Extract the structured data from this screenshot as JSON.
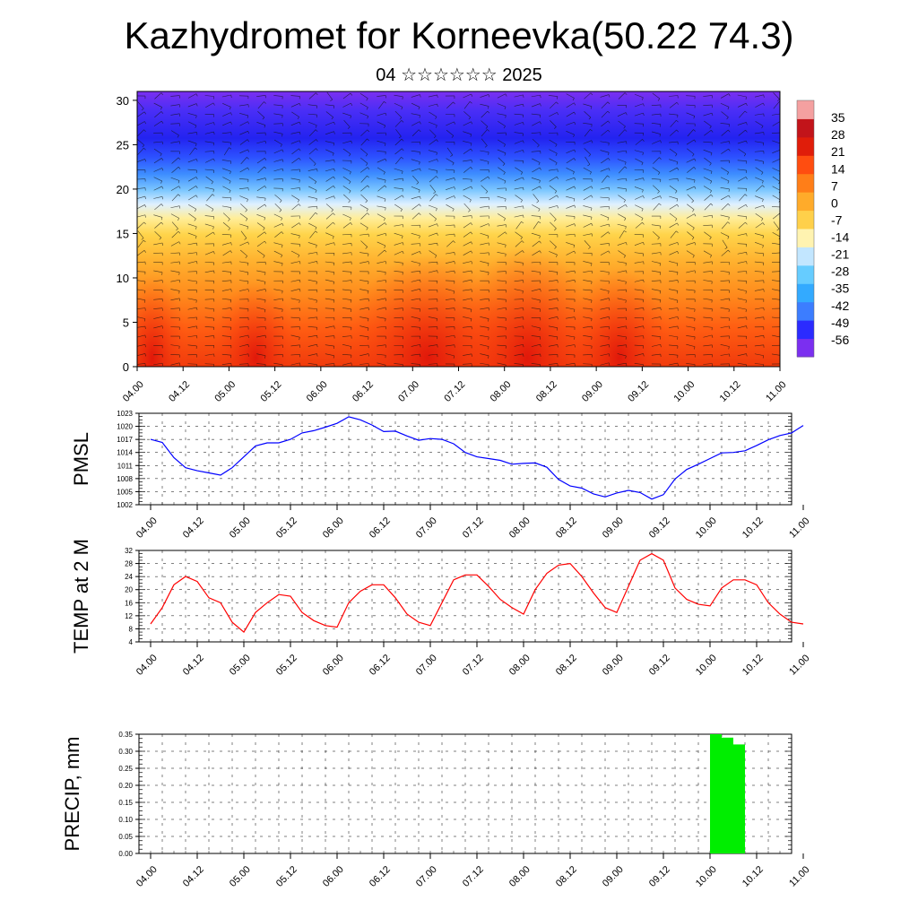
{
  "title": "Kazhydromet for Korneevka(50.22 74.3)",
  "subtitle": "04 ☆☆☆☆☆☆ 2025",
  "chart_data": [
    {
      "type": "heatmap",
      "name": "cross-section",
      "ylim": [
        0,
        31
      ],
      "yticks": [
        "0",
        "5",
        "10",
        "15",
        "20",
        "25",
        "30"
      ],
      "xticks": [
        "04.00",
        "04.12",
        "05.00",
        "05.12",
        "06.00",
        "06.12",
        "07.00",
        "07.12",
        "08.00",
        "08.12",
        "09.00",
        "09.12",
        "10.00",
        "10.12",
        "11.00"
      ],
      "colorbar": {
        "labels": [
          "35",
          "28",
          "21",
          "14",
          "7",
          "0",
          "-7",
          "-14",
          "-21",
          "-28",
          "-35",
          "-42",
          "-49",
          "-56"
        ],
        "range": [
          -63,
          42
        ],
        "colors": [
          "#7b2ff0",
          "#2b2bff",
          "#3c7dff",
          "#33aaff",
          "#66ccff",
          "#c2e6ff",
          "#fff3b0",
          "#ffd04a",
          "#ffab2a",
          "#ff7e18",
          "#ff4d10",
          "#e01d0a",
          "#c2141a",
          "#f4a0a0"
        ]
      },
      "wind_barbs": true,
      "grid": false
    },
    {
      "type": "line",
      "ylabel": "PMSL",
      "ylim": [
        1002,
        1023
      ],
      "yticks": [
        "1002",
        "1005",
        "1008",
        "1011",
        "1014",
        "1017",
        "1020",
        "1023"
      ],
      "xticks": [
        "04.00",
        "04.12",
        "05.00",
        "05.12",
        "06.00",
        "06.12",
        "07.00",
        "07.12",
        "08.00",
        "08.12",
        "09.00",
        "09.12",
        "10.00",
        "10.12",
        "11.00"
      ],
      "x": [
        0,
        3,
        6,
        9,
        12,
        15,
        18,
        21,
        24,
        27,
        30,
        33,
        36,
        39,
        42,
        45,
        48,
        51,
        54,
        57,
        60,
        63,
        66,
        69,
        72,
        75,
        78,
        81,
        84,
        87,
        90,
        93,
        96,
        99,
        102,
        105,
        108,
        111,
        114,
        117,
        120,
        123,
        126,
        129,
        132,
        135,
        138,
        141,
        144,
        147,
        150,
        153,
        156,
        159,
        162,
        165,
        168
      ],
      "series": [
        {
          "color": "#0000ff",
          "values": [
            1017,
            1016.3,
            1012.8,
            1010.5,
            1009.8,
            1009.3,
            1008.8,
            1010.5,
            1013,
            1015.5,
            1016.2,
            1016.2,
            1017,
            1018.5,
            1019,
            1019.8,
            1020.7,
            1022.2,
            1021.5,
            1020.3,
            1018.8,
            1018.9,
            1017.8,
            1016.8,
            1017.2,
            1017,
            1016,
            1014,
            1013,
            1012.6,
            1012.2,
            1011.3,
            1011.5,
            1011.6,
            1010.6,
            1007.8,
            1006.3,
            1005.8,
            1004.5,
            1003.8,
            1004.7,
            1005.3,
            1004.8,
            1003.3,
            1004.3,
            1007.9,
            1010.1,
            1011.3,
            1012.6,
            1013.9,
            1014,
            1014.4,
            1015.6,
            1016.9,
            1017.9,
            1018.5,
            1020.2
          ]
        }
      ],
      "grid": true
    },
    {
      "type": "line",
      "ylabel": "TEMP at 2 M",
      "ylim": [
        4,
        32
      ],
      "yticks": [
        "4",
        "8",
        "12",
        "16",
        "20",
        "24",
        "28",
        "32"
      ],
      "xticks": [
        "04.00",
        "04.12",
        "05.00",
        "05.12",
        "06.00",
        "06.12",
        "07.00",
        "07.12",
        "08.00",
        "08.12",
        "09.00",
        "09.12",
        "10.00",
        "10.12",
        "11.00"
      ],
      "x": [
        0,
        3,
        6,
        9,
        12,
        15,
        18,
        21,
        24,
        27,
        30,
        33,
        36,
        39,
        42,
        45,
        48,
        51,
        54,
        57,
        60,
        63,
        66,
        69,
        72,
        75,
        78,
        81,
        84,
        87,
        90,
        93,
        96,
        99,
        102,
        105,
        108,
        111,
        114,
        117,
        120,
        123,
        126,
        129,
        132,
        135,
        138,
        141,
        144,
        147,
        150,
        153,
        156,
        159,
        162,
        165,
        168
      ],
      "series": [
        {
          "color": "#ff0000",
          "values": [
            9.5,
            14.5,
            21.5,
            24,
            22.5,
            17.5,
            16,
            10,
            7,
            13,
            16,
            18.5,
            18,
            13,
            10.5,
            9,
            8.5,
            16,
            19.5,
            21.5,
            21.5,
            17.5,
            12.5,
            10,
            9,
            16,
            23,
            24.5,
            24.5,
            21,
            17,
            14.5,
            12.5,
            20,
            25,
            27.5,
            28,
            24,
            19,
            14.5,
            13,
            21,
            29,
            31,
            29,
            20.5,
            17,
            15.5,
            15,
            20.5,
            23,
            23,
            21.5,
            16,
            12.5,
            10,
            9.5
          ]
        }
      ],
      "grid": true
    },
    {
      "type": "bar",
      "ylabel": "PRECIP, mm",
      "ylim": [
        0,
        0.35
      ],
      "yticks": [
        "0.00",
        "0.05",
        "0.10",
        "0.15",
        "0.20",
        "0.25",
        "0.30",
        "0.35"
      ],
      "xticks": [
        "04.00",
        "04.12",
        "05.00",
        "05.12",
        "06.00",
        "06.12",
        "07.00",
        "07.12",
        "08.00",
        "08.12",
        "09.00",
        "09.12",
        "10.00",
        "10.12",
        "11.00"
      ],
      "bar_hour_width": 3,
      "bars": [
        {
          "hour": 147,
          "value": 0.35
        },
        {
          "hour": 150,
          "value": 0.34
        },
        {
          "hour": 153,
          "value": 0.32
        }
      ],
      "color": "#00ee00",
      "grid": true
    }
  ]
}
